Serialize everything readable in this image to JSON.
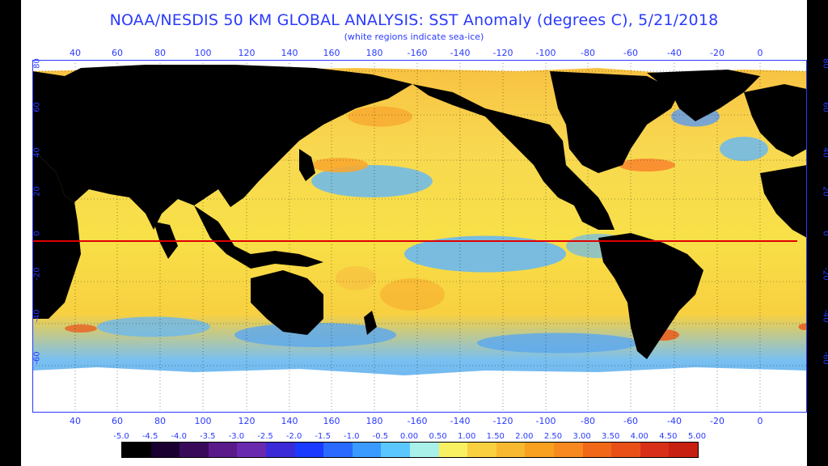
{
  "title": "NOAA/NESDIS 50 KM GLOBAL ANALYSIS: SST Anomaly (degrees C), 5/21/2018",
  "subtitle": "(white regions indicate sea-ice)",
  "longitude_labels": [
    "40",
    "60",
    "80",
    "100",
    "120",
    "140",
    "160",
    "180",
    "-160",
    "-140",
    "-120",
    "-100",
    "-80",
    "-60",
    "-40",
    "-20",
    "0"
  ],
  "latitude_labels": [
    "80",
    "60",
    "40",
    "20",
    "0",
    "-20",
    "-40",
    "-60"
  ],
  "colorbar": {
    "labels": [
      "-5.0",
      "-4.5",
      "-4.0",
      "-3.5",
      "-3.0",
      "-2.5",
      "-2.0",
      "-1.5",
      "-1.0",
      "-0.5",
      "0.00",
      "0.50",
      "1.00",
      "1.50",
      "2.00",
      "2.50",
      "3.00",
      "3.50",
      "4.00",
      "4.50",
      "5.00"
    ],
    "colors": [
      "#000000",
      "#1a0030",
      "#3a0a5a",
      "#5a1a8a",
      "#6a2ab0",
      "#3a2ad8",
      "#1a3aff",
      "#2a6aff",
      "#3a9aff",
      "#5ac8ff",
      "#a8f0e8",
      "#f8f060",
      "#f8d040",
      "#f8b830",
      "#f8a020",
      "#f88820",
      "#f06818",
      "#e85018",
      "#d83018",
      "#c82010"
    ]
  },
  "colors": {
    "land": "#000000",
    "sea_ice": "#ffffff",
    "equator_line": "#e00000",
    "axis_text": "#2a3aff",
    "ocean_neutral": "#f8e040",
    "ocean_cool": "#6ab8f0",
    "ocean_warm": "#f8a830"
  }
}
